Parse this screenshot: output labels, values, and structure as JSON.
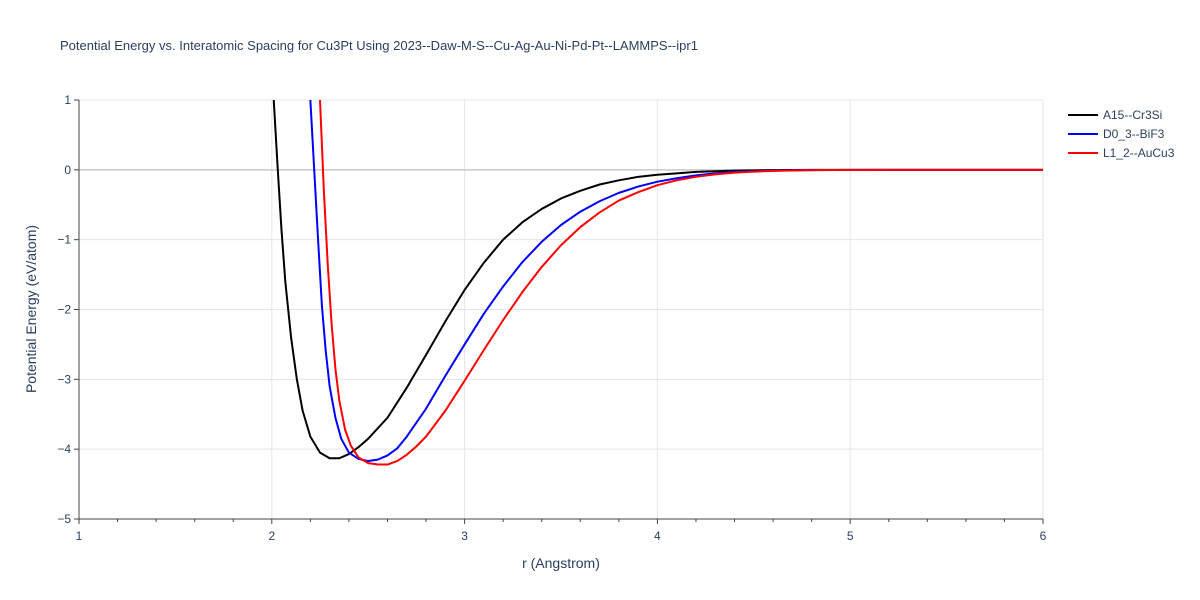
{
  "chart_data": {
    "type": "line",
    "title": "Potential Energy vs. Interatomic Spacing for Cu3Pt Using 2023--Daw-M-S--Cu-Ag-Au-Ni-Pd-Pt--LAMMPS--ipr1",
    "xlabel": "r (Angstrom)",
    "ylabel": "Potential Energy (eV/atom)",
    "xlim": [
      1,
      6
    ],
    "ylim": [
      -5,
      1
    ],
    "xticks": [
      1,
      2,
      3,
      4,
      5,
      6
    ],
    "yticks": [
      -5,
      -4,
      -3,
      -2,
      -1,
      0,
      1
    ],
    "ytick_labels": [
      "−5",
      "−4",
      "−3",
      "−2",
      "−1",
      "0",
      "1"
    ],
    "grid": true,
    "legend_position": "top-right",
    "series": [
      {
        "name": "A15--Cr3Si",
        "color": "#000000",
        "x": [
          2.01,
          2.03,
          2.05,
          2.07,
          2.1,
          2.13,
          2.16,
          2.2,
          2.25,
          2.3,
          2.35,
          2.4,
          2.45,
          2.5,
          2.6,
          2.7,
          2.8,
          2.9,
          3.0,
          3.1,
          3.2,
          3.3,
          3.4,
          3.5,
          3.6,
          3.7,
          3.8,
          3.9,
          4.0,
          4.1,
          4.2,
          4.3,
          4.4,
          4.5,
          4.6,
          4.7,
          4.8,
          4.9,
          5.0,
          5.2,
          5.5,
          6.0
        ],
        "y": [
          1.0,
          0.05,
          -0.85,
          -1.6,
          -2.4,
          -3.0,
          -3.45,
          -3.82,
          -4.05,
          -4.13,
          -4.13,
          -4.07,
          -3.97,
          -3.85,
          -3.55,
          -3.12,
          -2.65,
          -2.17,
          -1.72,
          -1.33,
          -1.0,
          -0.75,
          -0.56,
          -0.41,
          -0.3,
          -0.21,
          -0.15,
          -0.1,
          -0.07,
          -0.05,
          -0.03,
          -0.02,
          -0.012,
          -0.007,
          -0.004,
          -0.002,
          -0.001,
          -0.0005,
          0,
          0,
          0,
          0
        ]
      },
      {
        "name": "D0_3--BiF3",
        "color": "#0000ff",
        "x": [
          2.2,
          2.22,
          2.24,
          2.26,
          2.28,
          2.3,
          2.33,
          2.36,
          2.4,
          2.45,
          2.5,
          2.55,
          2.6,
          2.65,
          2.7,
          2.8,
          2.9,
          3.0,
          3.1,
          3.2,
          3.3,
          3.4,
          3.5,
          3.6,
          3.7,
          3.8,
          3.9,
          4.0,
          4.1,
          4.2,
          4.3,
          4.4,
          4.5,
          4.6,
          4.7,
          4.8,
          4.9,
          5.0,
          5.2,
          5.5,
          6.0
        ],
        "y": [
          1.0,
          0.0,
          -1.0,
          -1.95,
          -2.6,
          -3.1,
          -3.55,
          -3.85,
          -4.05,
          -4.14,
          -4.17,
          -4.15,
          -4.09,
          -3.99,
          -3.82,
          -3.42,
          -2.95,
          -2.5,
          -2.06,
          -1.67,
          -1.32,
          -1.03,
          -0.79,
          -0.6,
          -0.45,
          -0.33,
          -0.24,
          -0.17,
          -0.12,
          -0.08,
          -0.05,
          -0.03,
          -0.02,
          -0.012,
          -0.007,
          -0.004,
          -0.002,
          -0.001,
          0,
          0,
          0
        ]
      },
      {
        "name": "L1_2--AuCu3",
        "color": "#ff0000",
        "x": [
          2.25,
          2.27,
          2.29,
          2.31,
          2.33,
          2.35,
          2.38,
          2.41,
          2.45,
          2.5,
          2.55,
          2.6,
          2.65,
          2.7,
          2.75,
          2.8,
          2.9,
          3.0,
          3.1,
          3.2,
          3.3,
          3.4,
          3.5,
          3.6,
          3.7,
          3.8,
          3.9,
          4.0,
          4.1,
          4.2,
          4.3,
          4.4,
          4.5,
          4.6,
          4.7,
          4.8,
          4.9,
          5.0,
          5.2,
          5.5,
          6.0
        ],
        "y": [
          1.0,
          -0.3,
          -1.35,
          -2.2,
          -2.85,
          -3.3,
          -3.72,
          -3.95,
          -4.12,
          -4.2,
          -4.22,
          -4.22,
          -4.17,
          -4.08,
          -3.96,
          -3.82,
          -3.45,
          -3.02,
          -2.58,
          -2.15,
          -1.75,
          -1.39,
          -1.08,
          -0.82,
          -0.61,
          -0.44,
          -0.32,
          -0.22,
          -0.15,
          -0.1,
          -0.065,
          -0.04,
          -0.025,
          -0.015,
          -0.009,
          -0.005,
          -0.003,
          -0.0015,
          0,
          0,
          0
        ]
      }
    ]
  }
}
